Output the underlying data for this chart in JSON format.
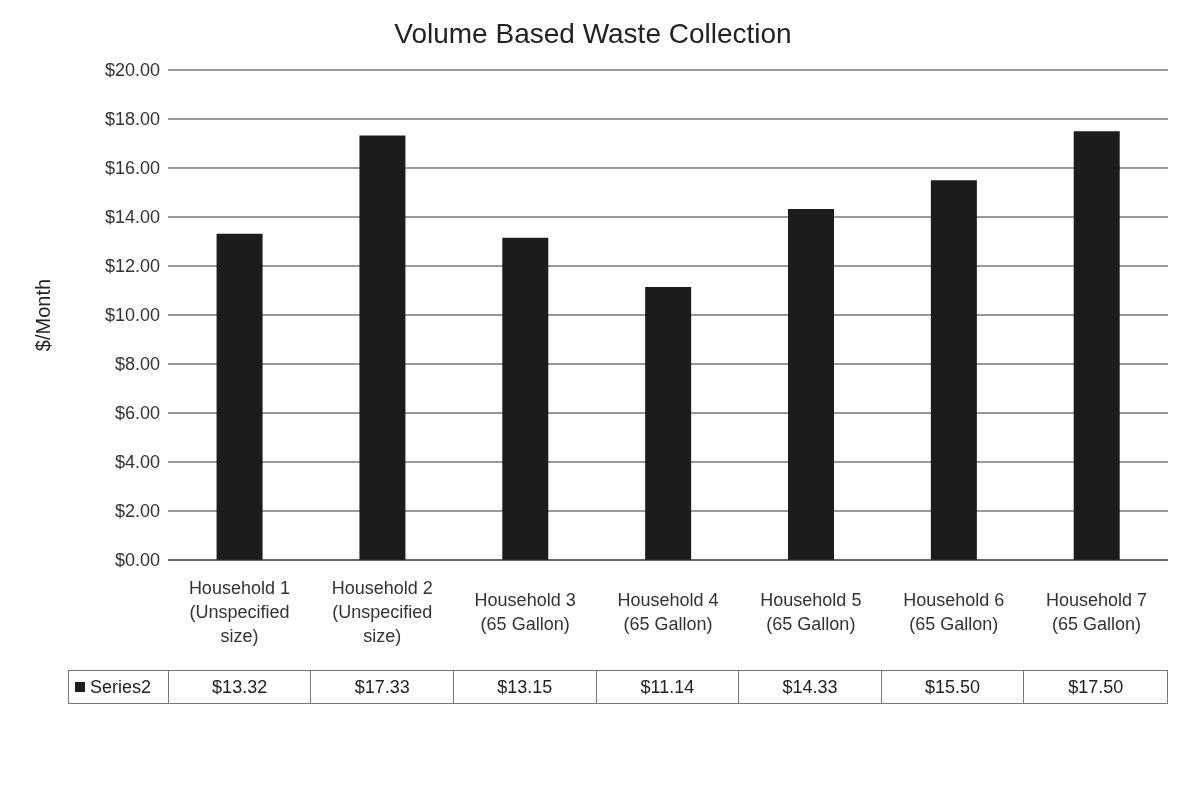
{
  "chart_data": {
    "type": "bar",
    "title": "Volume Based Waste Collection",
    "ylabel": "$/Month",
    "categories": [
      "Household 1 (Unspecified size)",
      "Household 2 (Unspecified size)",
      "Household 3 (65 Gallon)",
      "Household 4 (65 Gallon)",
      "Household 5 (65 Gallon)",
      "Household 6 (65 Gallon)",
      "Household 7 (65 Gallon)"
    ],
    "series": [
      {
        "name": "Series2",
        "color": "#1c1c1c",
        "values": [
          13.32,
          17.33,
          13.15,
          11.14,
          14.33,
          15.5,
          17.5
        ],
        "value_labels": [
          "$13.32",
          "$17.33",
          "$13.15",
          "$11.14",
          "$14.33",
          "$15.50",
          "$17.50"
        ]
      }
    ],
    "ylim": [
      0,
      20
    ],
    "yticks": [
      {
        "value": 0,
        "label": "$0.00"
      },
      {
        "value": 2,
        "label": "$2.00"
      },
      {
        "value": 4,
        "label": "$4.00"
      },
      {
        "value": 6,
        "label": "$6.00"
      },
      {
        "value": 8,
        "label": "$8.00"
      },
      {
        "value": 10,
        "label": "$10.00"
      },
      {
        "value": 12,
        "label": "$12.00"
      },
      {
        "value": 14,
        "label": "$14.00"
      },
      {
        "value": 16,
        "label": "$16.00"
      },
      {
        "value": 18,
        "label": "$18.00"
      },
      {
        "value": 20,
        "label": "$20.00"
      }
    ],
    "grid": "y",
    "legend": "bottom"
  }
}
